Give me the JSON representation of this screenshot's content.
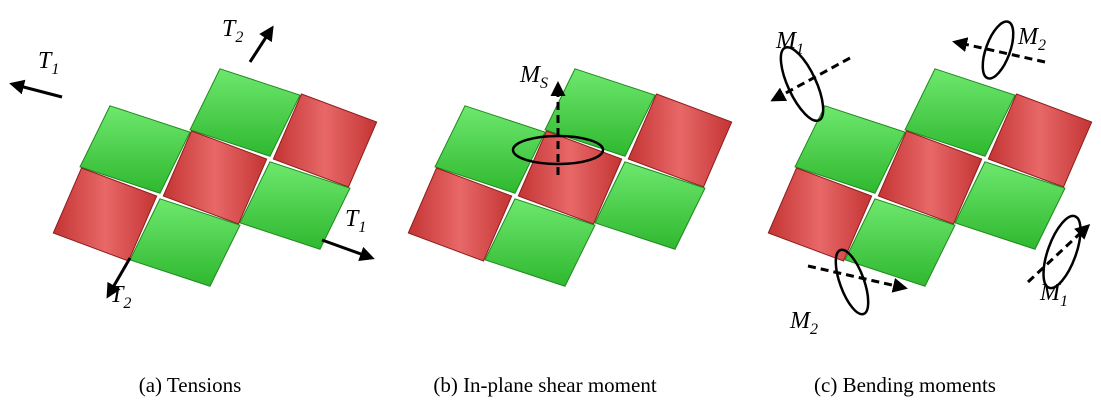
{
  "panels": [
    {
      "caption": "(a) Tensions",
      "labels": [
        {
          "symbol": "T",
          "subscript": "1"
        },
        {
          "symbol": "T",
          "subscript": "2"
        },
        {
          "symbol": "T",
          "subscript": "1"
        },
        {
          "symbol": "T",
          "subscript": "2"
        }
      ]
    },
    {
      "caption": "(b) In-plane shear moment",
      "labels": [
        {
          "symbol": "M",
          "subscript": "S"
        }
      ]
    },
    {
      "caption": "(c) Bending moments",
      "labels": [
        {
          "symbol": "M",
          "subscript": "1"
        },
        {
          "symbol": "M",
          "subscript": "2"
        },
        {
          "symbol": "M",
          "subscript": "2"
        },
        {
          "symbol": "M",
          "subscript": "1"
        }
      ]
    }
  ]
}
